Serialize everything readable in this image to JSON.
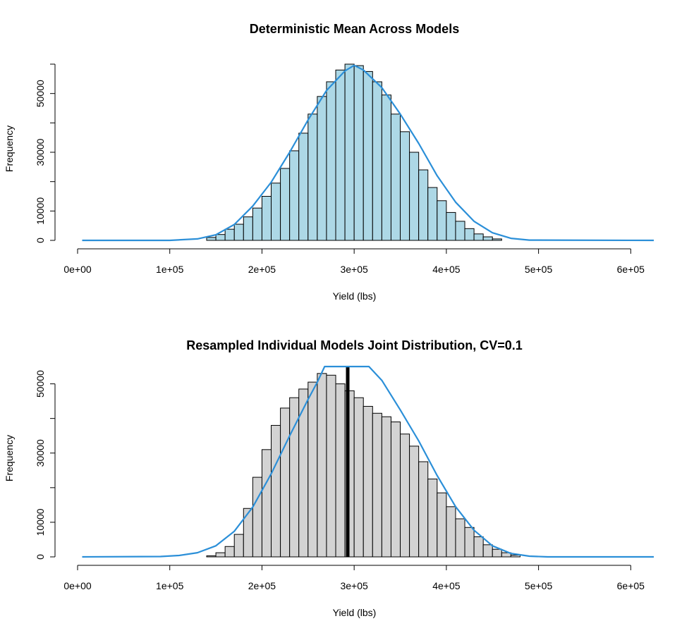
{
  "chart_data": [
    {
      "type": "bar",
      "title": "Deterministic Mean Across Models",
      "xlabel": "Yield (lbs)",
      "ylabel": "Frequency",
      "xlim": [
        0,
        625000
      ],
      "ylim": [
        0,
        60000
      ],
      "bin_width": 10000,
      "bin_start": 140000,
      "x_ticks": [
        "0e+00",
        "1e+05",
        "2e+05",
        "3e+05",
        "4e+05",
        "5e+05",
        "6e+05"
      ],
      "y_ticks": [
        "0",
        "10000",
        "30000",
        "50000"
      ],
      "fill_color": "#add8e6",
      "curve_color": "#2b8fd8",
      "values": [
        1000,
        2000,
        3800,
        5500,
        8000,
        11000,
        15000,
        19500,
        24500,
        30500,
        36500,
        43000,
        49000,
        54000,
        58000,
        60000,
        59500,
        57500,
        54000,
        49500,
        43000,
        37000,
        30000,
        24000,
        18000,
        13500,
        9500,
        6500,
        4000,
        2200,
        1200,
        500
      ],
      "curve": [
        [
          5000,
          0
        ],
        [
          100000,
          0
        ],
        [
          130000,
          500
        ],
        [
          150000,
          1900
        ],
        [
          170000,
          5400
        ],
        [
          190000,
          11700
        ],
        [
          210000,
          19800
        ],
        [
          230000,
          30000
        ],
        [
          250000,
          41000
        ],
        [
          270000,
          51000
        ],
        [
          290000,
          57700
        ],
        [
          300000,
          59600
        ],
        [
          310000,
          58000
        ],
        [
          330000,
          52000
        ],
        [
          350000,
          43000
        ],
        [
          370000,
          33000
        ],
        [
          390000,
          22000
        ],
        [
          410000,
          13000
        ],
        [
          430000,
          6500
        ],
        [
          450000,
          2600
        ],
        [
          470000,
          700
        ],
        [
          490000,
          100
        ],
        [
          625000,
          0
        ]
      ]
    },
    {
      "type": "bar",
      "title": "Resampled Individual Models Joint Distribution, CV=0.1",
      "xlabel": "Yield (lbs)",
      "ylabel": "Frequency",
      "xlim": [
        0,
        625000
      ],
      "ylim": [
        0,
        55000
      ],
      "bin_width": 10000,
      "bin_start": 140000,
      "x_ticks": [
        "0e+00",
        "1e+05",
        "2e+05",
        "3e+05",
        "4e+05",
        "5e+05",
        "6e+05"
      ],
      "y_ticks": [
        "0",
        "10000",
        "30000",
        "50000"
      ],
      "fill_color": "#d3d3d3",
      "curve_color": "#2b8fd8",
      "mean_line": 293000,
      "values": [
        300,
        1200,
        3000,
        6500,
        14000,
        23000,
        31000,
        38000,
        43000,
        46000,
        48500,
        50500,
        53000,
        52500,
        50000,
        48000,
        46000,
        43500,
        41500,
        40500,
        39000,
        35500,
        32000,
        27500,
        22500,
        18500,
        14500,
        11000,
        8500,
        5800,
        3500,
        2200,
        1200,
        500
      ],
      "curve": [
        [
          5000,
          0
        ],
        [
          90000,
          100
        ],
        [
          110000,
          400
        ],
        [
          130000,
          1200
        ],
        [
          150000,
          3200
        ],
        [
          170000,
          7400
        ],
        [
          190000,
          14400
        ],
        [
          210000,
          24000
        ],
        [
          230000,
          35000
        ],
        [
          250000,
          45500
        ],
        [
          260000,
          50500
        ],
        [
          268000,
          55000
        ],
        [
          316000,
          55000
        ],
        [
          330000,
          51000
        ],
        [
          350000,
          42500
        ],
        [
          370000,
          33500
        ],
        [
          390000,
          23500
        ],
        [
          410000,
          14500
        ],
        [
          430000,
          7700
        ],
        [
          450000,
          3200
        ],
        [
          470000,
          1000
        ],
        [
          490000,
          200
        ],
        [
          510000,
          0
        ],
        [
          625000,
          0
        ]
      ]
    }
  ]
}
